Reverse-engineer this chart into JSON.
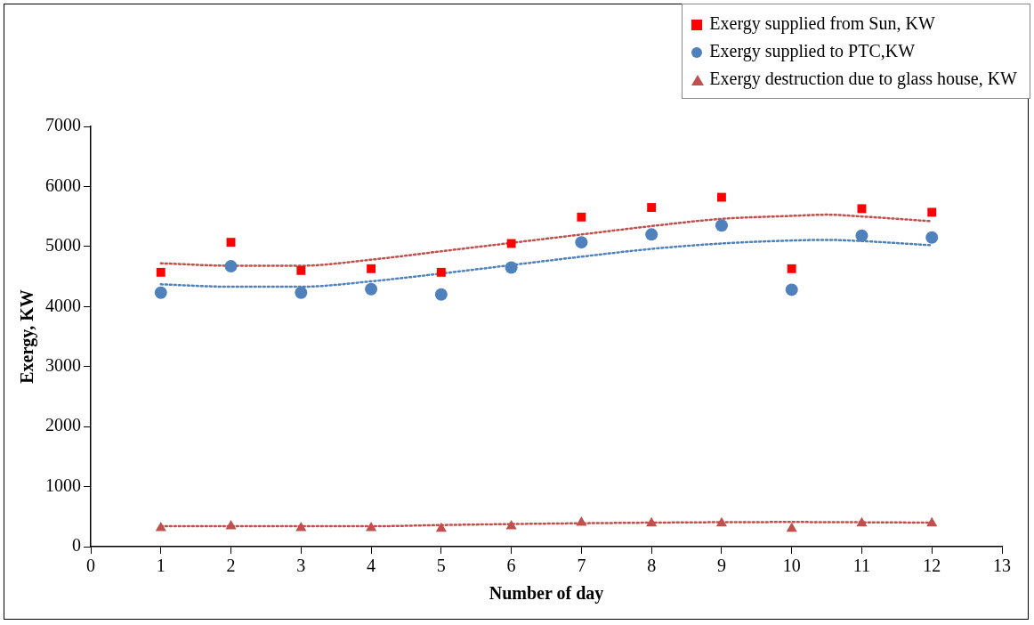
{
  "chart_data": {
    "type": "scatter",
    "xlabel": "Number of day",
    "ylabel": "Exergy, KW",
    "x": [
      1,
      2,
      3,
      4,
      5,
      6,
      7,
      8,
      9,
      10,
      11,
      12
    ],
    "xlim": [
      0,
      13
    ],
    "xticks": [
      0,
      1,
      2,
      3,
      4,
      5,
      6,
      7,
      8,
      9,
      10,
      11,
      12,
      13
    ],
    "ylim": [
      0,
      7000
    ],
    "yticks": [
      0,
      1000,
      2000,
      3000,
      4000,
      5000,
      6000,
      7000
    ],
    "grid": false,
    "legend": "top right",
    "series": [
      {
        "name": "Exergy supplied from Sun, KW",
        "color": "#ff0000",
        "marker": "square",
        "values": [
          4570,
          5070,
          4600,
          4630,
          4570,
          5050,
          5490,
          5650,
          5820,
          4630,
          5630,
          5570
        ]
      },
      {
        "name": "Exergy supplied to PTC,KW",
        "color": "#4f81bd",
        "marker": "circle",
        "values": [
          4230,
          4670,
          4230,
          4290,
          4200,
          4650,
          5070,
          5200,
          5350,
          4280,
          5180,
          5150
        ]
      },
      {
        "name": "Exergy destruction due to glass house, KW",
        "color": "#c0504d",
        "marker": "triangle",
        "values": [
          310,
          340,
          310,
          310,
          300,
          340,
          400,
          390,
          390,
          300,
          390,
          390
        ]
      },
      {
        "type": "line",
        "color": "#c0504d",
        "marker": "none",
        "line_style": "dotted",
        "x": [
          1,
          2,
          3,
          4,
          5,
          6,
          7,
          8,
          9,
          10,
          10.5,
          11,
          12
        ],
        "values": [
          4720,
          4680,
          4680,
          4780,
          4920,
          5060,
          5200,
          5340,
          5460,
          5510,
          5530,
          5500,
          5420
        ]
      },
      {
        "type": "line",
        "color": "#4f81bd",
        "marker": "none",
        "line_style": "dotted",
        "x": [
          1,
          2,
          3,
          4,
          5,
          6,
          7,
          8,
          9,
          10,
          10.5,
          11,
          12
        ],
        "values": [
          4370,
          4330,
          4330,
          4420,
          4550,
          4690,
          4830,
          4960,
          5050,
          5100,
          5110,
          5090,
          5020
        ]
      },
      {
        "type": "line",
        "color": "#c0504d",
        "marker": "none",
        "line_style": "dotted",
        "x": [
          1,
          4,
          5,
          7,
          10,
          12
        ],
        "values": [
          340,
          340,
          360,
          390,
          410,
          400
        ]
      }
    ]
  }
}
